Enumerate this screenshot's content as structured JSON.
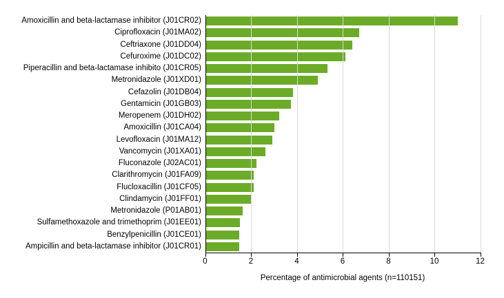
{
  "chart_data": {
    "type": "bar",
    "orientation": "horizontal",
    "title": "",
    "xlabel": "Percentage of antimicrobial agents (n=110151)",
    "ylabel": "",
    "xlim": [
      0,
      12
    ],
    "xticks": [
      "0",
      "2",
      "4",
      "6",
      "8",
      "10",
      "12"
    ],
    "grid": "vertical-only",
    "legend": "none",
    "categories": [
      "Amoxicillin and beta-lactamase inhibitor (J01CR02)",
      "Ciprofloxacin (J01MA02)",
      "Ceftriaxone (J01DD04)",
      "Cefuroxime (J01DC02)",
      "Piperacillin and beta-lactamase inhibito (J01CR05)",
      "Metronidazole (J01XD01)",
      "Cefazolin (J01DB04)",
      "Gentamicin (J01GB03)",
      "Meropenem (J01DH02)",
      "Amoxicillin (J01CA04)",
      "Levofloxacin (J01MA12)",
      "Vancomycin (J01XA01)",
      "Fluconazole (J02AC01)",
      "Clarithromycin (J01FA09)",
      "Flucloxacillin (J01CF05)",
      "Clindamycin (J01FF01)",
      "Metronidazole (P01AB01)",
      "Sulfamethoxazole and trimethoprim (J01EE01)",
      "Benzylpenicillin (J01CE01)",
      "Ampicillin and beta-lactamase inhibitor (J01CR01)"
    ],
    "values": [
      11.0,
      6.7,
      6.4,
      6.1,
      5.3,
      4.9,
      3.8,
      3.7,
      3.2,
      3.0,
      2.9,
      2.6,
      2.2,
      2.1,
      2.1,
      2.0,
      1.6,
      1.5,
      1.45,
      1.45
    ],
    "colors": {
      "bar": "#6CAB28",
      "gridline": "#D9D9D9",
      "axis": "#000000",
      "text": "#000000",
      "background": "#FFFFFF"
    }
  }
}
